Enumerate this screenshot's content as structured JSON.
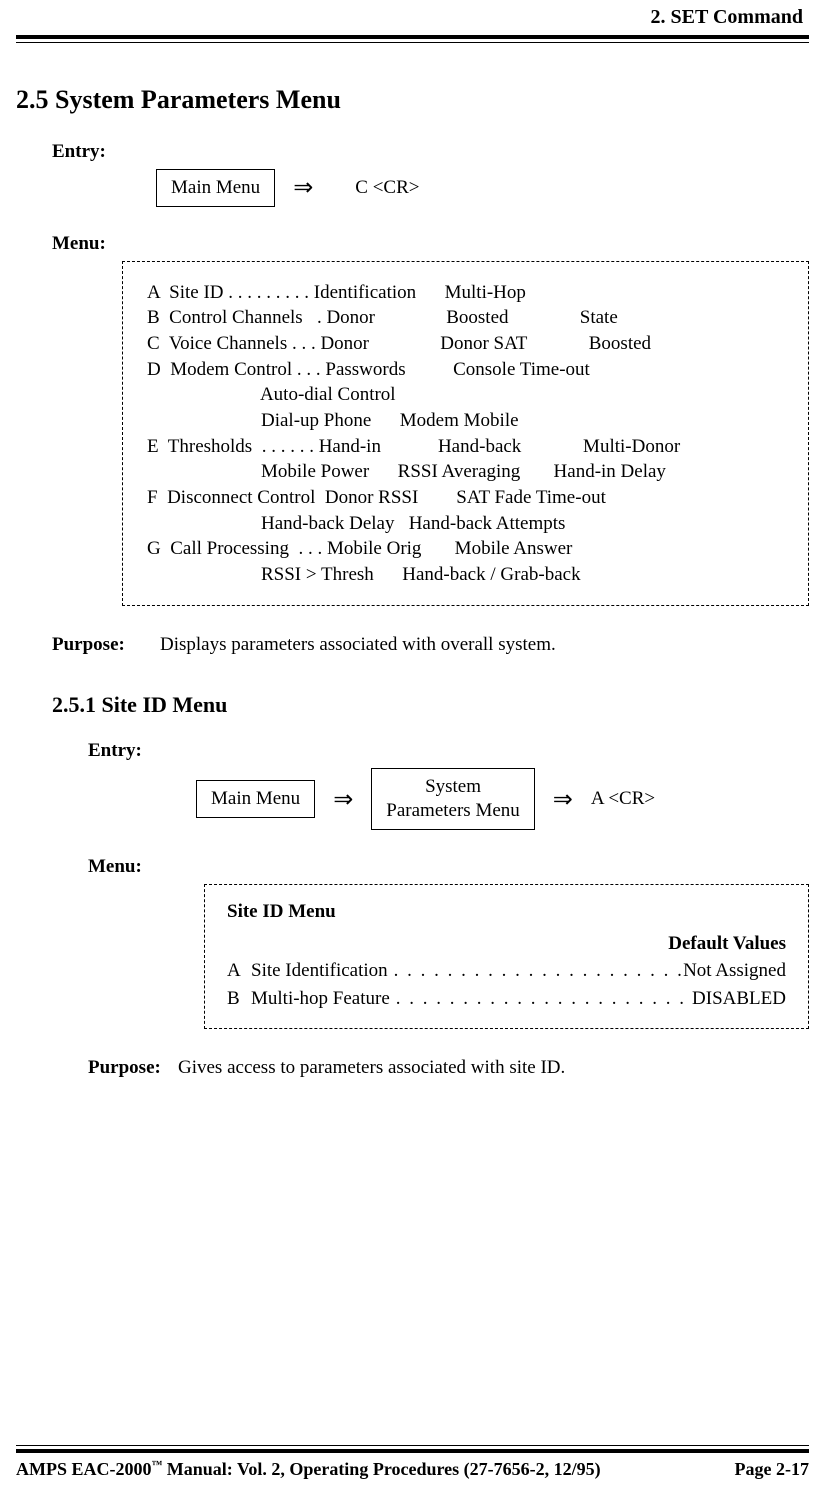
{
  "running_head": "2.  SET Command",
  "section_2_5": {
    "heading": "2.5  System Parameters Menu",
    "entry_label": "Entry:",
    "entry_sequence": {
      "step1_box": "Main Menu",
      "arrow": "⇒",
      "cmd": "C <CR>"
    },
    "menu_label": "Menu:",
    "menu_box_text": "A  Site ID . . . . . . . . . Identification      Multi-Hop\nB  Control Channels   . Donor               Boosted               State\nC  Voice Channels . . . Donor               Donor SAT             Boosted\nD  Modem Control . . . Passwords          Console Time-out\n                        Auto-dial Control\n                        Dial-up Phone      Modem Mobile\nE  Thresholds  . . . . . . Hand-in            Hand-back             Multi-Donor\n                        Mobile Power      RSSI Averaging       Hand-in Delay\nF  Disconnect Control  Donor RSSI        SAT Fade Time-out\n                        Hand-back Delay   Hand-back Attempts\nG  Call Processing  . . . Mobile Orig       Mobile Answer\n                        RSSI > Thresh      Hand-back / Grab-back",
    "purpose_label": "Purpose:",
    "purpose_text": "Displays parameters associated with overall system."
  },
  "section_2_5_1": {
    "heading": "2.5.1  Site ID Menu",
    "entry_label": "Entry:",
    "entry_sequence": {
      "step1_box": "Main Menu",
      "arrow1": "⇒",
      "step2_box_line1": "System",
      "step2_box_line2": "Parameters Menu",
      "arrow2": "⇒",
      "cmd": "A <CR>"
    },
    "menu_label": "Menu:",
    "menu_box": {
      "title": "Site ID Menu",
      "default_values_label": "Default Values",
      "rows": [
        {
          "key": "A",
          "label": "Site Identification",
          "value": "Not Assigned"
        },
        {
          "key": "B",
          "label": "Multi-hop Feature",
          "value": "DISABLED"
        }
      ]
    },
    "purpose_label": "Purpose:",
    "purpose_text": "Gives access to parameters associated with site ID."
  },
  "footer": {
    "left_prefix": "AMPS EAC-2000",
    "left_tm": "™",
    "left_suffix": " Manual:  Vol. 2, Operating Procedures (27-7656-2, 12/95)",
    "right": "Page 2-17"
  }
}
